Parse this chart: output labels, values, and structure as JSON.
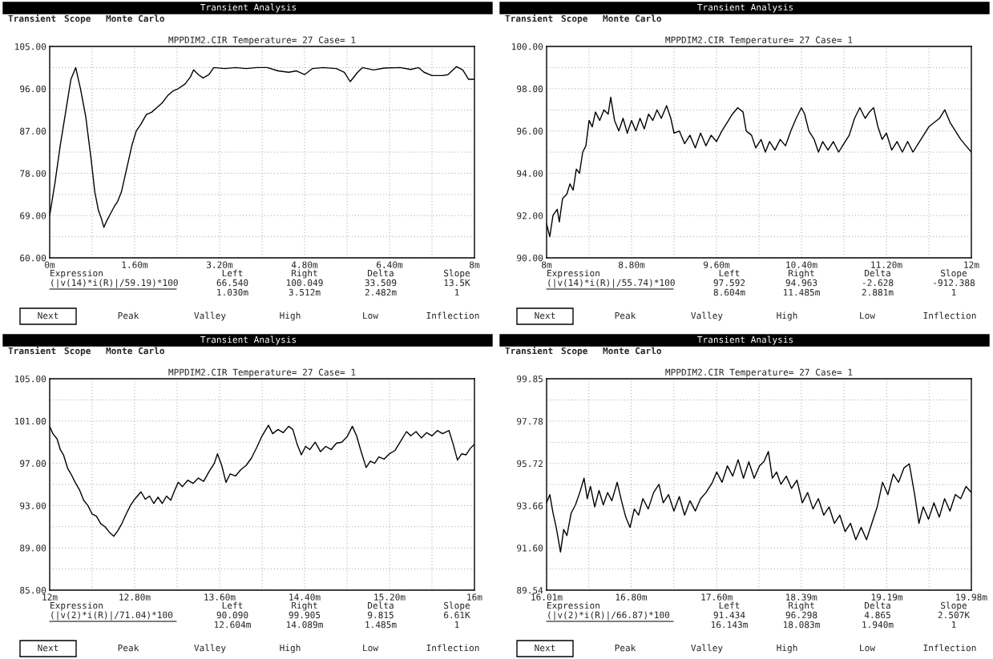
{
  "chart_data": [
    {
      "type": "line",
      "title": "MPPDIM2.CIR Temperature= 27 Case= 1",
      "color": "#000000",
      "grid": true,
      "x": [
        0,
        0.1,
        0.2,
        0.3,
        0.4,
        0.49,
        0.58,
        0.68,
        0.78,
        0.85,
        0.92,
        0.97,
        1.02,
        1.08,
        1.15,
        1.22,
        1.28,
        1.35,
        1.45,
        1.55,
        1.63,
        1.72,
        1.82,
        1.92,
        2.02,
        2.12,
        2.22,
        2.32,
        2.42,
        2.55,
        2.65,
        2.71,
        2.8,
        2.89,
        3.0,
        3.09,
        3.3,
        3.5,
        3.7,
        3.9,
        4.1,
        4.3,
        4.5,
        4.65,
        4.8,
        4.95,
        5.15,
        5.4,
        5.55,
        5.66,
        5.8,
        5.89,
        6.1,
        6.3,
        6.6,
        6.8,
        6.95,
        7.05,
        7.2,
        7.4,
        7.5,
        7.66,
        7.78,
        7.89,
        8.0
      ],
      "values": [
        69,
        76,
        84,
        91,
        98,
        100.5,
        96,
        90,
        81,
        74,
        70,
        68.5,
        66.5,
        68,
        69.5,
        71,
        72,
        74,
        79,
        84,
        87,
        88.5,
        90.5,
        91,
        92,
        93,
        94.5,
        95.5,
        96,
        97,
        98.5,
        100,
        99,
        98.3,
        99,
        100.5,
        100.3,
        100.5,
        100.3,
        100.5,
        100.5,
        99.8,
        99.5,
        99.8,
        99,
        100.3,
        100.5,
        100.3,
        99.5,
        97.5,
        99.5,
        100.5,
        100,
        100.4,
        100.5,
        100.1,
        100.5,
        99.5,
        98.8,
        98.8,
        99,
        100.7,
        100,
        98,
        98
      ],
      "xlim": [
        0,
        8
      ],
      "ylim": [
        60,
        105
      ],
      "xticks": [
        {
          "value": 0,
          "label": "0m"
        },
        {
          "value": 0.8,
          "label": null
        },
        {
          "value": 1.6,
          "label": "1.60m"
        },
        {
          "value": 2.4,
          "label": null
        },
        {
          "value": 3.2,
          "label": "3.20m"
        },
        {
          "value": 4.0,
          "label": null
        },
        {
          "value": 4.8,
          "label": "4.80m"
        },
        {
          "value": 5.6,
          "label": null
        },
        {
          "value": 6.4,
          "label": "6.40m"
        },
        {
          "value": 7.2,
          "label": null
        },
        {
          "value": 8,
          "label": "8m"
        }
      ],
      "yticks": [
        {
          "value": 60,
          "label": "60.00"
        },
        {
          "value": 64.5,
          "label": null
        },
        {
          "value": 69,
          "label": "69.00"
        },
        {
          "value": 73.5,
          "label": null
        },
        {
          "value": 78,
          "label": "78.00"
        },
        {
          "value": 82.5,
          "label": null
        },
        {
          "value": 87,
          "label": "87.00"
        },
        {
          "value": 91.5,
          "label": null
        },
        {
          "value": 96,
          "label": "96.00"
        },
        {
          "value": 100.5,
          "label": null
        },
        {
          "value": 105,
          "label": "105.00"
        }
      ],
      "annotations": [
        "Transient Analysis",
        "Transient",
        "Scope",
        "Monte Carlo",
        "Expression",
        "(|v(14)*i(R)|/59.19)*100",
        "Left",
        "Right",
        "Delta",
        "Slope",
        "66.540",
        "100.049",
        "33.509",
        "13.5K",
        "1.030m",
        "3.512m",
        "2.482m",
        "1",
        "Next",
        "Peak",
        "Valley",
        "High",
        "Low",
        "Inflection"
      ]
    },
    {
      "type": "line",
      "title": "MPPDIM2.CIR Temperature= 27 Case= 1",
      "color": "#000000",
      "grid": true,
      "x": [
        8.0,
        8.03,
        8.06,
        8.1,
        8.12,
        8.15,
        8.19,
        8.22,
        8.25,
        8.28,
        8.31,
        8.34,
        8.37,
        8.4,
        8.43,
        8.46,
        8.5,
        8.54,
        8.58,
        8.604,
        8.64,
        8.68,
        8.72,
        8.76,
        8.8,
        8.84,
        8.88,
        8.92,
        8.96,
        9.0,
        9.04,
        9.08,
        9.13,
        9.17,
        9.2,
        9.25,
        9.3,
        9.35,
        9.4,
        9.45,
        9.5,
        9.55,
        9.6,
        9.65,
        9.7,
        9.75,
        9.8,
        9.85,
        9.88,
        9.93,
        9.97,
        10.02,
        10.06,
        10.1,
        10.15,
        10.2,
        10.25,
        10.3,
        10.35,
        10.4,
        10.43,
        10.47,
        10.52,
        10.56,
        10.6,
        10.65,
        10.7,
        10.75,
        10.8,
        10.85,
        10.9,
        10.95,
        11.0,
        11.04,
        11.08,
        11.12,
        11.16,
        11.2,
        11.25,
        11.3,
        11.35,
        11.4,
        11.45,
        11.5,
        11.6,
        11.7,
        11.75,
        11.8,
        11.85,
        11.9,
        11.95,
        12.0
      ],
      "values": [
        91.6,
        91.0,
        92.0,
        92.3,
        91.7,
        92.8,
        93.0,
        93.5,
        93.2,
        94.2,
        94.0,
        95.0,
        95.3,
        96.5,
        96.2,
        96.9,
        96.5,
        97.0,
        96.8,
        97.6,
        96.5,
        96.0,
        96.6,
        95.9,
        96.5,
        96.0,
        96.6,
        96.1,
        96.8,
        96.5,
        97.0,
        96.6,
        97.2,
        96.6,
        95.9,
        96.0,
        95.4,
        95.8,
        95.2,
        95.9,
        95.3,
        95.8,
        95.5,
        96.0,
        96.4,
        96.8,
        97.1,
        96.9,
        96.0,
        95.8,
        95.2,
        95.6,
        95.0,
        95.5,
        95.1,
        95.6,
        95.3,
        96.0,
        96.6,
        97.1,
        96.8,
        96.0,
        95.6,
        95.0,
        95.5,
        95.1,
        95.5,
        95.0,
        95.4,
        95.8,
        96.6,
        97.1,
        96.6,
        96.9,
        97.1,
        96.2,
        95.6,
        95.9,
        95.1,
        95.5,
        95.0,
        95.5,
        95.0,
        95.4,
        96.2,
        96.6,
        97.0,
        96.4,
        96.0,
        95.6,
        95.3,
        95.0
      ],
      "xlim": [
        8,
        12
      ],
      "ylim": [
        90,
        100
      ],
      "xticks": [
        {
          "value": 8,
          "label": "8m"
        },
        {
          "value": 8.4,
          "label": null
        },
        {
          "value": 8.8,
          "label": "8.80m"
        },
        {
          "value": 9.2,
          "label": null
        },
        {
          "value": 9.6,
          "label": "9.60m"
        },
        {
          "value": 10.0,
          "label": null
        },
        {
          "value": 10.4,
          "label": "10.40m"
        },
        {
          "value": 10.8,
          "label": null
        },
        {
          "value": 11.2,
          "label": "11.20m"
        },
        {
          "value": 11.6,
          "label": null
        },
        {
          "value": 12,
          "label": "12m"
        }
      ],
      "yticks": [
        {
          "value": 90,
          "label": "90.00"
        },
        {
          "value": 91,
          "label": null
        },
        {
          "value": 92,
          "label": "92.00"
        },
        {
          "value": 93,
          "label": null
        },
        {
          "value": 94,
          "label": "94.00"
        },
        {
          "value": 95,
          "label": null
        },
        {
          "value": 96,
          "label": "96.00"
        },
        {
          "value": 97,
          "label": null
        },
        {
          "value": 98,
          "label": "98.00"
        },
        {
          "value": 99,
          "label": null
        },
        {
          "value": 100,
          "label": "100.00"
        }
      ],
      "annotations": [
        "Transient Analysis",
        "Transient",
        "Scope",
        "Monte Carlo",
        "Expression",
        "(|v(14)*i(R)|/55.74)*100",
        "Left",
        "Right",
        "Delta",
        "Slope",
        "97.592",
        "94.963",
        "-2.628",
        "-912.388",
        "8.604m",
        "11.485m",
        "2.881m",
        "1",
        "Next",
        "Peak",
        "Valley",
        "High",
        "Low",
        "Inflection"
      ]
    },
    {
      "type": "line",
      "title": "MPPDIM2.CIR Temperature= 27 Case= 1",
      "color": "#000000",
      "grid": true,
      "x": [
        12.0,
        12.03,
        12.07,
        12.1,
        12.13,
        12.17,
        12.2,
        12.24,
        12.28,
        12.32,
        12.36,
        12.4,
        12.44,
        12.48,
        12.52,
        12.56,
        12.604,
        12.64,
        12.68,
        12.72,
        12.76,
        12.8,
        12.86,
        12.9,
        12.94,
        12.98,
        13.02,
        13.06,
        13.1,
        13.14,
        13.18,
        13.21,
        13.25,
        13.3,
        13.35,
        13.4,
        13.45,
        13.5,
        13.55,
        13.58,
        13.62,
        13.66,
        13.7,
        13.75,
        13.8,
        13.85,
        13.9,
        13.95,
        14.0,
        14.06,
        14.1,
        14.15,
        14.2,
        14.25,
        14.29,
        14.33,
        14.37,
        14.41,
        14.45,
        14.5,
        14.55,
        14.6,
        14.65,
        14.7,
        14.75,
        14.8,
        14.85,
        14.89,
        14.93,
        14.98,
        15.02,
        15.06,
        15.1,
        15.15,
        15.2,
        15.25,
        15.3,
        15.36,
        15.4,
        15.45,
        15.5,
        15.55,
        15.6,
        15.65,
        15.7,
        15.76,
        15.8,
        15.84,
        15.88,
        15.92,
        15.96,
        16.0
      ],
      "values": [
        100.5,
        99.8,
        99.3,
        98.3,
        97.8,
        96.5,
        96.0,
        95.2,
        94.5,
        93.5,
        93.0,
        92.2,
        92.0,
        91.3,
        91.0,
        90.5,
        90.1,
        90.6,
        91.3,
        92.2,
        93.0,
        93.6,
        94.3,
        93.6,
        93.9,
        93.2,
        93.8,
        93.2,
        93.9,
        93.5,
        94.5,
        95.2,
        94.8,
        95.4,
        95.1,
        95.6,
        95.3,
        96.2,
        97.0,
        97.9,
        96.8,
        95.2,
        96.0,
        95.8,
        96.4,
        96.8,
        97.5,
        98.5,
        99.6,
        100.6,
        99.8,
        100.2,
        99.9,
        100.5,
        100.2,
        98.8,
        97.8,
        98.6,
        98.3,
        99.0,
        98.1,
        98.6,
        98.3,
        98.9,
        99.0,
        99.5,
        100.5,
        99.6,
        98.2,
        96.6,
        97.2,
        97.0,
        97.6,
        97.4,
        97.9,
        98.2,
        99.0,
        100.0,
        99.6,
        100.0,
        99.4,
        99.9,
        99.6,
        100.1,
        99.8,
        100.1,
        98.8,
        97.3,
        97.9,
        97.8,
        98.4,
        98.8
      ],
      "xlim": [
        12,
        16
      ],
      "ylim": [
        85,
        105
      ],
      "xticks": [
        {
          "value": 12,
          "label": "12m"
        },
        {
          "value": 12.4,
          "label": null
        },
        {
          "value": 12.8,
          "label": "12.80m"
        },
        {
          "value": 13.2,
          "label": null
        },
        {
          "value": 13.6,
          "label": "13.60m"
        },
        {
          "value": 14.0,
          "label": null
        },
        {
          "value": 14.4,
          "label": "14.40m"
        },
        {
          "value": 14.8,
          "label": null
        },
        {
          "value": 15.2,
          "label": "15.20m"
        },
        {
          "value": 15.6,
          "label": null
        },
        {
          "value": 16,
          "label": "16m"
        }
      ],
      "yticks": [
        {
          "value": 85,
          "label": "85.00"
        },
        {
          "value": 87,
          "label": null
        },
        {
          "value": 89,
          "label": "89.00"
        },
        {
          "value": 91,
          "label": null
        },
        {
          "value": 93,
          "label": "93.00"
        },
        {
          "value": 95,
          "label": null
        },
        {
          "value": 97,
          "label": "97.00"
        },
        {
          "value": 99,
          "label": null
        },
        {
          "value": 101,
          "label": "101.00"
        },
        {
          "value": 103,
          "label": null
        },
        {
          "value": 105,
          "label": "105.00"
        }
      ],
      "annotations": [
        "Transient Analysis",
        "Transient",
        "Scope",
        "Monte Carlo",
        "Expression",
        "(|v(2)*i(R)|/71.04)*100",
        "Left",
        "Right",
        "Delta",
        "Slope",
        "90.090",
        "99.905",
        "9.815",
        "6.61K",
        "12.604m",
        "14.089m",
        "1.485m",
        "1",
        "Next",
        "Peak",
        "Valley",
        "High",
        "Low",
        "Inflection"
      ]
    },
    {
      "type": "line",
      "title": "MPPDIM2.CIR Temperature= 27 Case= 1",
      "color": "#000000",
      "grid": true,
      "x": [
        16.01,
        16.04,
        16.07,
        16.1,
        16.14,
        16.17,
        16.2,
        16.24,
        16.28,
        16.32,
        16.36,
        16.39,
        16.42,
        16.46,
        16.5,
        16.54,
        16.58,
        16.62,
        16.67,
        16.71,
        16.75,
        16.79,
        16.83,
        16.87,
        16.91,
        16.96,
        17.01,
        17.06,
        17.1,
        17.15,
        17.2,
        17.25,
        17.3,
        17.35,
        17.4,
        17.45,
        17.5,
        17.56,
        17.6,
        17.65,
        17.7,
        17.75,
        17.8,
        17.85,
        17.9,
        17.95,
        18.0,
        18.04,
        18.083,
        18.12,
        18.16,
        18.2,
        18.25,
        18.3,
        18.35,
        18.4,
        18.45,
        18.5,
        18.55,
        18.6,
        18.65,
        18.7,
        18.75,
        18.8,
        18.85,
        18.9,
        18.95,
        19.0,
        19.05,
        19.1,
        19.15,
        19.2,
        19.25,
        19.3,
        19.35,
        19.4,
        19.45,
        19.49,
        19.53,
        19.58,
        19.63,
        19.68,
        19.73,
        19.78,
        19.83,
        19.88,
        19.93,
        19.98
      ],
      "values": [
        93.8,
        94.2,
        93.3,
        92.6,
        91.4,
        92.5,
        92.2,
        93.3,
        93.7,
        94.3,
        95.0,
        94.0,
        94.6,
        93.6,
        94.4,
        93.7,
        94.3,
        93.9,
        94.8,
        93.9,
        93.1,
        92.6,
        93.5,
        93.2,
        94.0,
        93.5,
        94.3,
        94.7,
        93.8,
        94.2,
        93.4,
        94.1,
        93.2,
        93.9,
        93.4,
        94.0,
        94.3,
        94.8,
        95.3,
        94.8,
        95.6,
        95.1,
        95.9,
        95.0,
        95.8,
        95.0,
        95.6,
        95.8,
        96.3,
        95.0,
        95.3,
        94.7,
        95.1,
        94.5,
        94.9,
        93.8,
        94.3,
        93.5,
        94.0,
        93.2,
        93.6,
        92.8,
        93.2,
        92.4,
        92.8,
        92.0,
        92.6,
        92.0,
        92.8,
        93.6,
        94.8,
        94.2,
        95.2,
        94.8,
        95.5,
        95.7,
        94.2,
        92.8,
        93.6,
        93.0,
        93.8,
        93.1,
        94.0,
        93.4,
        94.2,
        94.0,
        94.6,
        94.3
      ],
      "xlim": [
        16.01,
        19.98
      ],
      "ylim": [
        89.54,
        99.85
      ],
      "xticks": [
        {
          "value": 16.01,
          "label": "16.01m"
        },
        {
          "value": 16.405,
          "label": null
        },
        {
          "value": 16.8,
          "label": "16.80m"
        },
        {
          "value": 17.2,
          "label": null
        },
        {
          "value": 17.6,
          "label": "17.60m"
        },
        {
          "value": 17.995,
          "label": null
        },
        {
          "value": 18.39,
          "label": "18.39m"
        },
        {
          "value": 18.79,
          "label": null
        },
        {
          "value": 19.19,
          "label": "19.19m"
        },
        {
          "value": 19.585,
          "label": null
        },
        {
          "value": 19.98,
          "label": "19.98m"
        }
      ],
      "yticks": [
        {
          "value": 89.54,
          "label": "89.54"
        },
        {
          "value": 90.57,
          "label": null
        },
        {
          "value": 91.6,
          "label": "91.60"
        },
        {
          "value": 92.63,
          "label": null
        },
        {
          "value": 93.66,
          "label": "93.66"
        },
        {
          "value": 94.69,
          "label": null
        },
        {
          "value": 95.72,
          "label": "95.72"
        },
        {
          "value": 96.75,
          "label": null
        },
        {
          "value": 97.78,
          "label": "97.78"
        },
        {
          "value": 98.815,
          "label": null
        },
        {
          "value": 99.85,
          "label": "99.85"
        }
      ],
      "annotations": [
        "Transient Analysis",
        "Transient",
        "Scope",
        "Monte Carlo",
        "Expression",
        "(|v(2)*i(R)|/66.87)*100",
        "Left",
        "Right",
        "Delta",
        "Slope",
        "91.434",
        "96.298",
        "4.865",
        "2.507K",
        "16.143m",
        "18.083m",
        "1.940m",
        "1",
        "Next",
        "Peak",
        "Valley",
        "High",
        "Low",
        "Inflection"
      ]
    }
  ]
}
